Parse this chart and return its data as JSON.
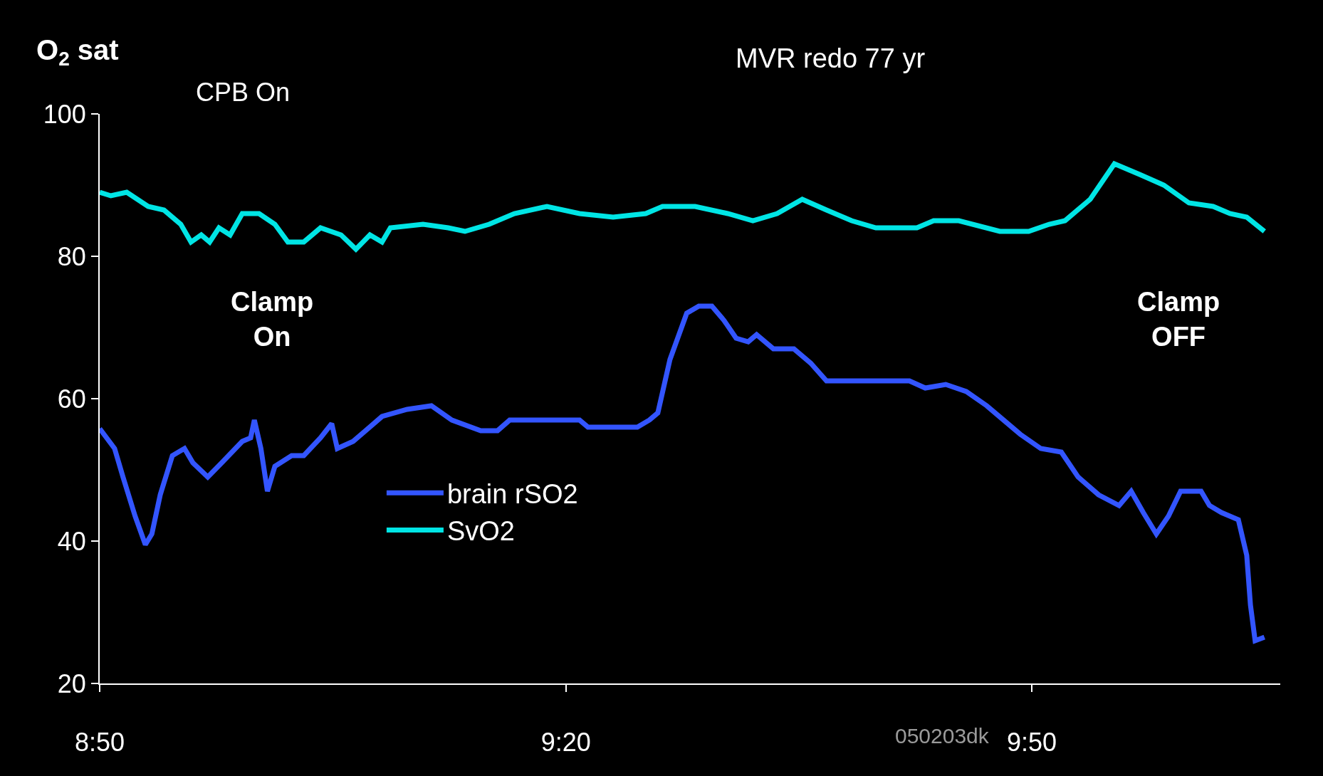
{
  "chart_data": {
    "type": "line",
    "title": "MVR redo 77 yr",
    "ylabel": "O$_{2}$ sat",
    "xlim": [
      8.833,
      10.1
    ],
    "xticks": [
      {
        "value": 8.833,
        "label": "8:50"
      },
      {
        "value": 9.3333,
        "label": "9:20"
      },
      {
        "value": 9.8333,
        "label": "9:50"
      }
    ],
    "ylim": [
      20,
      100
    ],
    "yticks": [
      20,
      40,
      60,
      80,
      100
    ],
    "grid": false,
    "legend": "bottom",
    "marker": "none",
    "line_style": "solid",
    "annotations": [
      "CPB On",
      "Clamp\nOn",
      "Clamp\nOFF",
      "050203dk"
    ],
    "series": [
      {
        "name": "brain rSO2",
        "color": "#3355ff",
        "x": [
          8.833,
          8.849,
          8.858,
          8.871,
          8.882,
          8.889,
          8.898,
          8.911,
          8.924,
          8.933,
          8.949,
          8.964,
          8.986,
          8.995,
          8.999,
          9.006,
          9.013,
          9.021,
          9.039,
          9.052,
          9.07,
          9.082,
          9.088,
          9.105,
          9.136,
          9.163,
          9.189,
          9.211,
          9.242,
          9.26,
          9.273,
          9.348,
          9.357,
          9.41,
          9.423,
          9.432,
          9.445,
          9.463,
          9.476,
          9.49,
          9.503,
          9.516,
          9.529,
          9.538,
          9.556,
          9.578,
          9.596,
          9.613,
          9.649,
          9.702,
          9.719,
          9.741,
          9.763,
          9.785,
          9.803,
          9.821,
          9.843,
          9.865,
          9.883,
          9.905,
          9.927,
          9.94,
          9.953,
          9.967,
          9.98,
          9.993,
          10.015,
          10.024,
          10.037,
          10.055,
          10.064,
          10.068,
          10.073,
          10.083
        ],
        "values": [
          55.8,
          53,
          49,
          43.5,
          39.5,
          41,
          46.5,
          52,
          53,
          51,
          49,
          51,
          54,
          54.5,
          57,
          53,
          47,
          50.5,
          52,
          52,
          54.5,
          56.5,
          53,
          54,
          57.5,
          58.5,
          59,
          57,
          55.5,
          55.5,
          57,
          57,
          56,
          56,
          57,
          58,
          65.5,
          72,
          73,
          73,
          71,
          68.5,
          68,
          69,
          67,
          67,
          65,
          62.5,
          62.5,
          62.5,
          61.5,
          62,
          61,
          59,
          57,
          55,
          53,
          52.5,
          49,
          46.5,
          45,
          47,
          44,
          41,
          43.5,
          47,
          47,
          45,
          44,
          43,
          38,
          31,
          26,
          26.5
        ]
      },
      {
        "name": "SvO2",
        "color": "#00e5e5",
        "x": [
          8.833,
          8.845,
          8.862,
          8.885,
          8.902,
          8.92,
          8.931,
          8.942,
          8.951,
          8.961,
          8.973,
          8.986,
          9.004,
          9.021,
          9.035,
          9.052,
          9.07,
          9.092,
          9.108,
          9.123,
          9.136,
          9.145,
          9.18,
          9.207,
          9.225,
          9.251,
          9.278,
          9.313,
          9.348,
          9.384,
          9.419,
          9.437,
          9.472,
          9.507,
          9.534,
          9.56,
          9.587,
          9.613,
          9.64,
          9.666,
          9.71,
          9.728,
          9.755,
          9.799,
          9.83,
          9.852,
          9.869,
          9.896,
          9.922,
          9.949,
          9.975,
          10.002,
          10.028,
          10.046,
          10.064,
          10.083
        ],
        "values": [
          89,
          88.5,
          89,
          87,
          86.5,
          84.5,
          82,
          83,
          82,
          84,
          83,
          86,
          86,
          84.5,
          82,
          82,
          84,
          83,
          81,
          83,
          82,
          84,
          84.5,
          84,
          83.5,
          84.5,
          86,
          87,
          86,
          85.5,
          86,
          87,
          87,
          86,
          85,
          86,
          88,
          86.5,
          85,
          84,
          84,
          85,
          85,
          83.5,
          83.5,
          84.5,
          85,
          88,
          93,
          91.5,
          90,
          87.5,
          87,
          86,
          85.5,
          83.5
        ]
      }
    ]
  }
}
